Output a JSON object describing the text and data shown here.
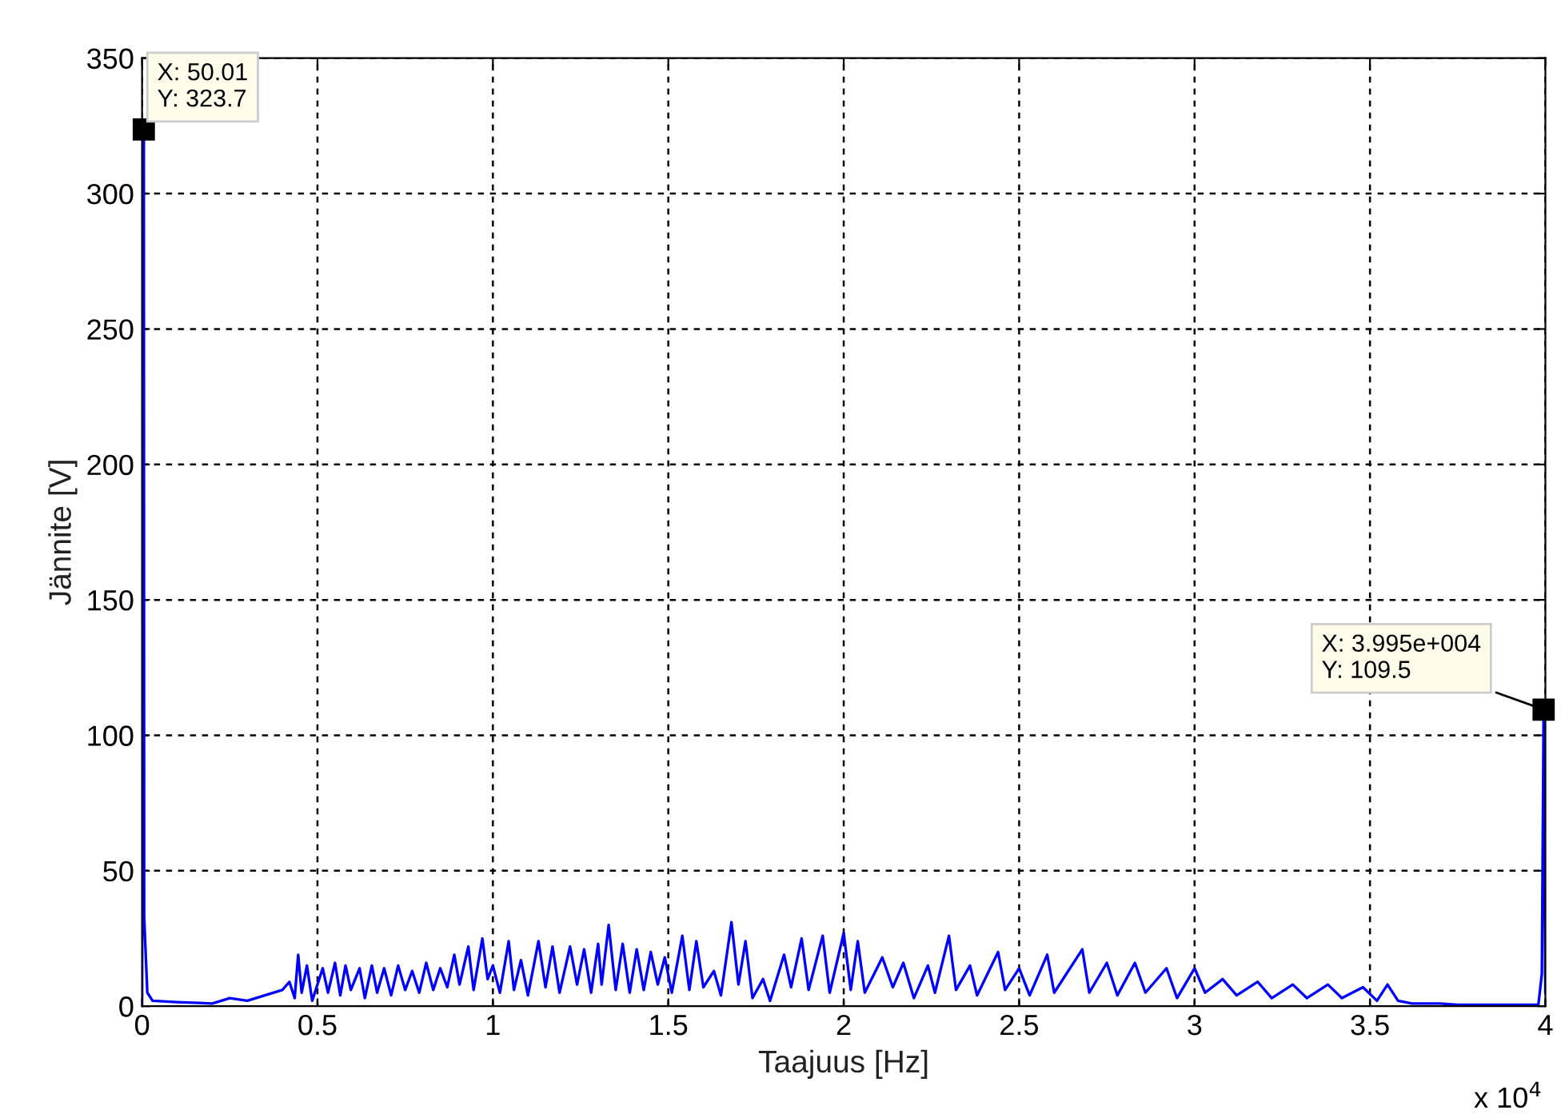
{
  "chart_data": {
    "type": "line",
    "xlabel": "Taajuus [Hz]",
    "ylabel": "Jännite [V]",
    "xlim": [
      0,
      4
    ],
    "ylim": [
      0,
      350
    ],
    "xticks": [
      0,
      0.5,
      1,
      1.5,
      2,
      2.5,
      3,
      3.5,
      4
    ],
    "yticks": [
      0,
      50,
      100,
      150,
      200,
      250,
      300,
      350
    ],
    "grid": true,
    "line_style": "solid",
    "marker": "none",
    "annotations": [
      "x 10$^{4}$",
      {
        "text": "X: 50.01\nY: 323.7",
        "x": 0.005001,
        "y": 323.7
      },
      {
        "text": "X: 3.995e+004\nY: 109.5",
        "x": 3.995,
        "y": 109.5
      }
    ],
    "series": [
      {
        "color": "#0000ff",
        "x": [
          0,
          0.005,
          0.006,
          0.015,
          0.03,
          0.1,
          0.2,
          0.25,
          0.3,
          0.35,
          0.4,
          0.42,
          0.435,
          0.445,
          0.455,
          0.47,
          0.485,
          0.5,
          0.515,
          0.53,
          0.55,
          0.565,
          0.58,
          0.595,
          0.62,
          0.635,
          0.655,
          0.67,
          0.69,
          0.71,
          0.73,
          0.75,
          0.77,
          0.79,
          0.81,
          0.83,
          0.85,
          0.87,
          0.89,
          0.905,
          0.93,
          0.945,
          0.97,
          0.985,
          1.0,
          1.02,
          1.045,
          1.06,
          1.08,
          1.1,
          1.13,
          1.15,
          1.17,
          1.19,
          1.22,
          1.24,
          1.26,
          1.28,
          1.3,
          1.31,
          1.33,
          1.35,
          1.37,
          1.39,
          1.41,
          1.43,
          1.45,
          1.47,
          1.49,
          1.51,
          1.54,
          1.56,
          1.58,
          1.6,
          1.63,
          1.65,
          1.68,
          1.7,
          1.72,
          1.74,
          1.77,
          1.79,
          1.83,
          1.85,
          1.88,
          1.9,
          1.94,
          1.96,
          2.0,
          2.02,
          2.04,
          2.06,
          2.11,
          2.14,
          2.17,
          2.2,
          2.24,
          2.26,
          2.3,
          2.32,
          2.36,
          2.38,
          2.44,
          2.46,
          2.5,
          2.53,
          2.58,
          2.6,
          2.68,
          2.7,
          2.75,
          2.78,
          2.83,
          2.86,
          2.92,
          2.95,
          3.0,
          3.03,
          3.08,
          3.12,
          3.18,
          3.22,
          3.28,
          3.32,
          3.38,
          3.42,
          3.48,
          3.52,
          3.55,
          3.58,
          3.62,
          3.7,
          3.75,
          3.98,
          3.99,
          3.995,
          4.0
        ],
        "values": [
          0,
          323.7,
          33,
          5,
          2,
          1.5,
          1,
          3,
          2,
          4,
          6,
          9,
          3,
          19,
          5,
          15,
          2,
          8,
          14,
          5,
          16,
          4,
          15,
          6,
          14,
          3,
          15,
          5,
          14,
          4,
          15,
          6,
          13,
          5,
          16,
          6,
          14,
          7,
          19,
          8,
          22,
          6,
          25,
          10,
          15,
          5,
          24,
          6,
          17,
          4,
          24,
          7,
          22,
          5,
          22,
          8,
          21,
          5,
          23,
          8,
          30,
          6,
          23,
          5,
          21,
          6,
          20,
          8,
          18,
          5,
          26,
          6,
          24,
          7,
          13,
          4,
          31,
          8,
          24,
          3,
          10,
          2,
          19,
          7,
          25,
          6,
          26,
          5,
          27,
          6,
          24,
          5,
          18,
          7,
          16,
          3,
          15,
          5,
          26,
          6,
          15,
          4,
          20,
          6,
          14,
          4,
          19,
          5,
          21,
          5,
          16,
          4,
          16,
          5,
          14,
          3,
          14,
          5,
          10,
          4,
          9,
          3,
          8,
          3,
          8,
          3,
          7,
          2,
          8,
          2,
          1,
          1,
          0.5,
          0.5,
          12,
          109.5,
          5
        ]
      }
    ]
  }
}
